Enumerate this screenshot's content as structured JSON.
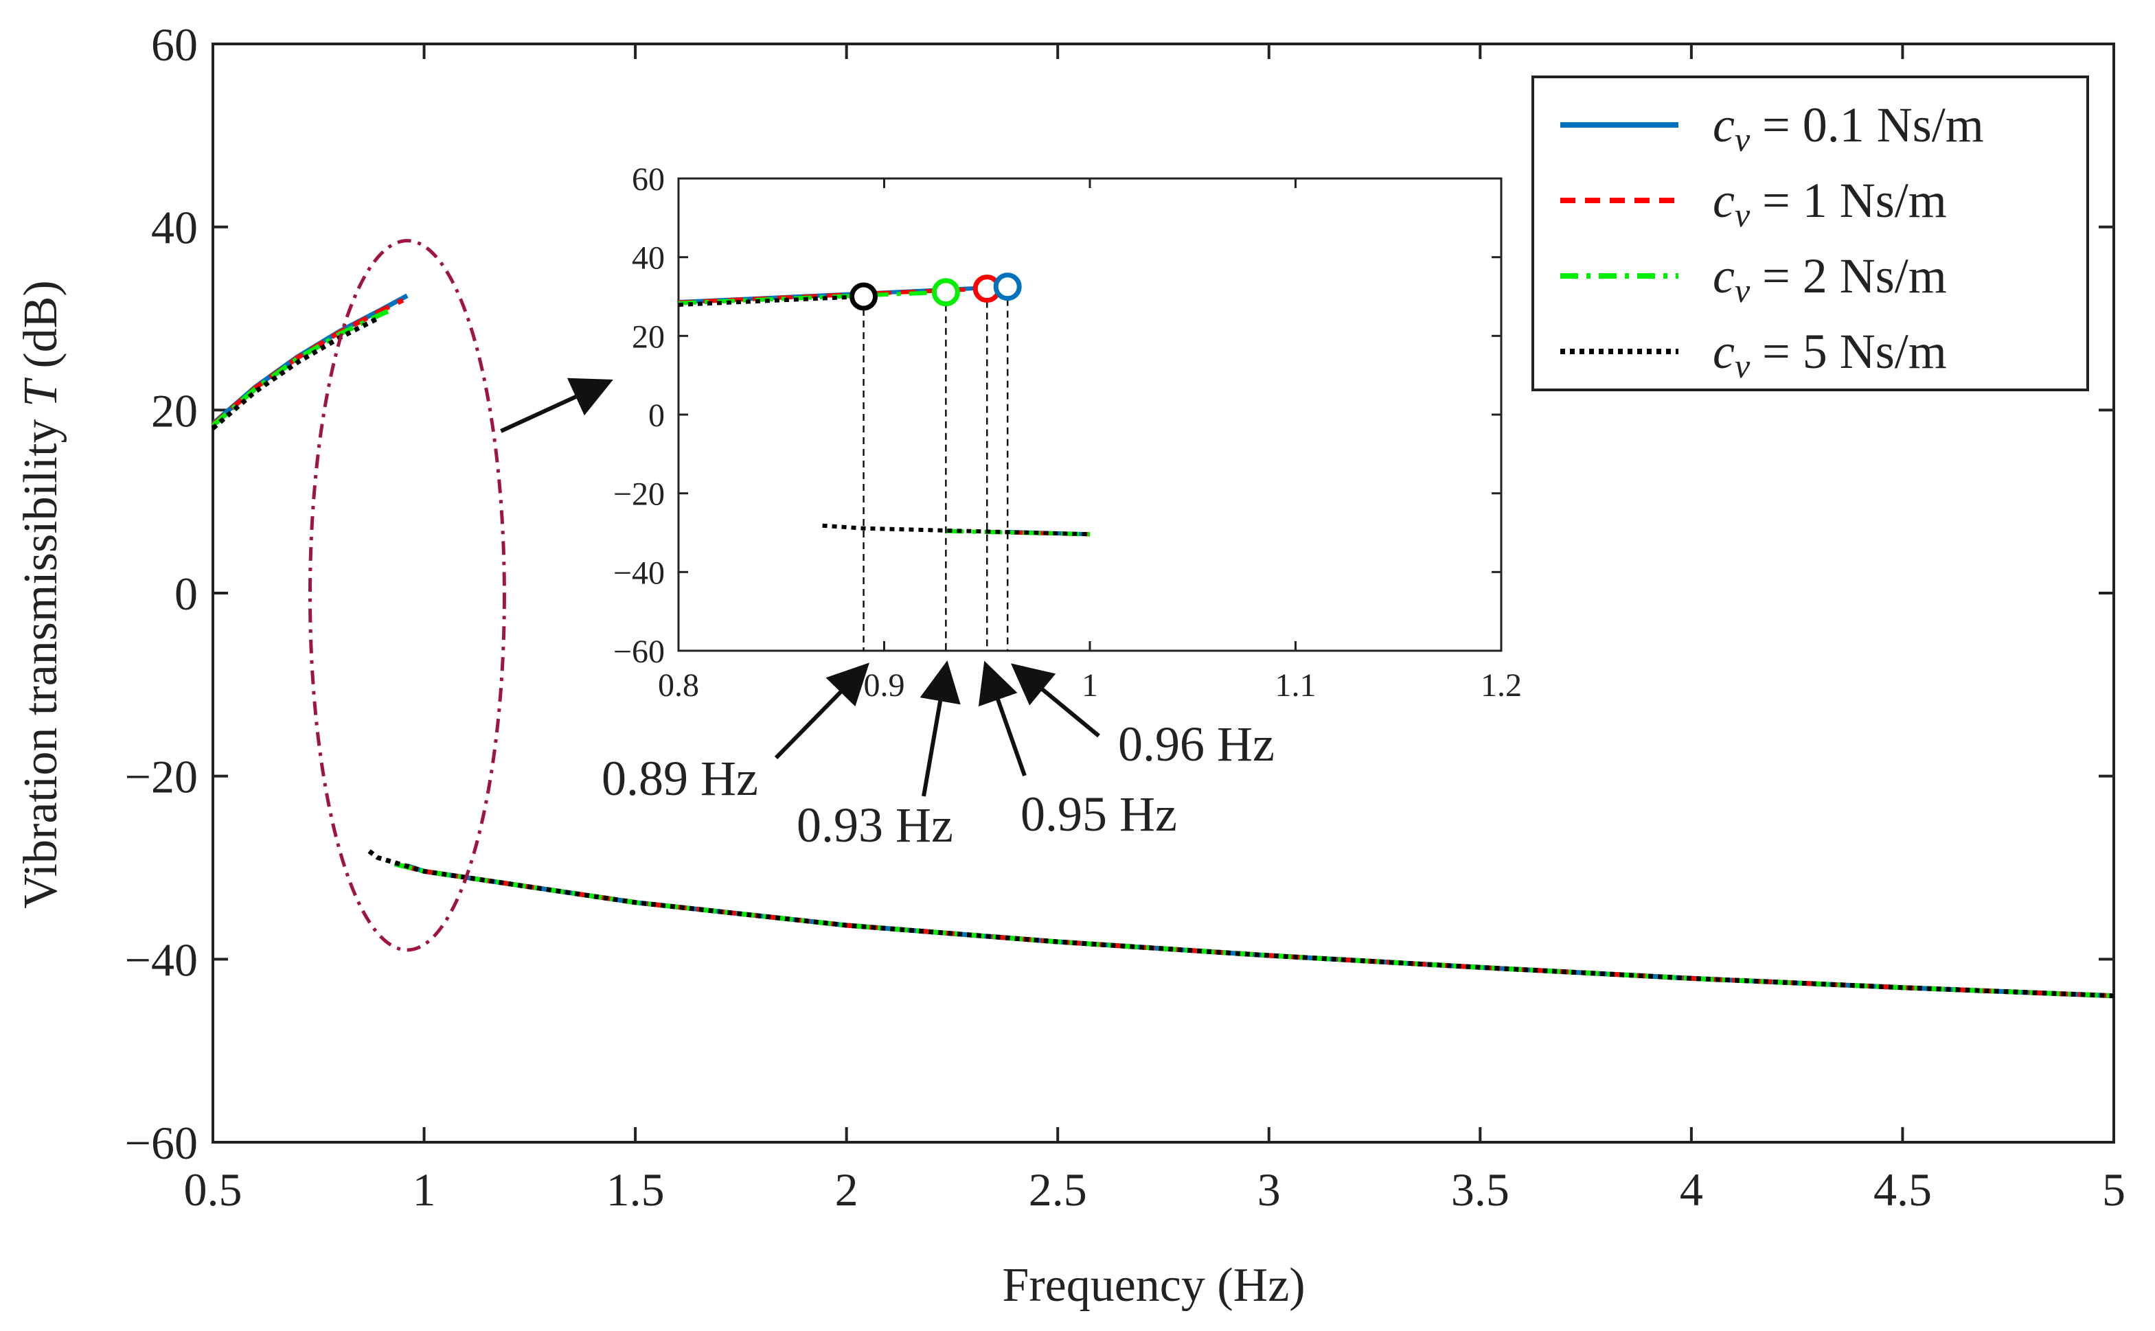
{
  "chart_data": {
    "type": "line",
    "title": "",
    "xlabel": "Frequency (Hz)",
    "ylabel_prefix": "Vibration transmissibility ",
    "ylabel_symbol": "T",
    "ylabel_suffix": " (dB)",
    "xlim": [
      0.5,
      5
    ],
    "ylim": [
      -60,
      60
    ],
    "x_ticks": [
      0.5,
      1,
      1.5,
      2,
      2.5,
      3,
      3.5,
      4,
      4.5,
      5
    ],
    "x_tick_labels": [
      "0.5",
      "1",
      "1.5",
      "2",
      "2.5",
      "3",
      "3.5",
      "4",
      "4.5",
      "5"
    ],
    "y_ticks": [
      -60,
      -40,
      -20,
      0,
      20,
      40,
      60
    ],
    "y_tick_labels": [
      "−60",
      "−40",
      "−20",
      "0",
      "20",
      "40",
      "60"
    ],
    "grid": false,
    "legend_position": "top-right",
    "series": [
      {
        "name": "c_v = 0.1 Ns/m",
        "legend_symbol": "c",
        "legend_subscript": "v",
        "legend_value": " = 0.1 Ns/m",
        "color": "#0072BD",
        "style": "solid",
        "upper_branch": {
          "x": [
            0.5,
            0.6,
            0.7,
            0.8,
            0.9,
            0.96
          ],
          "y": [
            18.5,
            22.5,
            25.8,
            28.6,
            31.0,
            32.5
          ]
        },
        "lower_branch": {
          "x": [
            0.96,
            1,
            1.5,
            2,
            2.5,
            3,
            3.5,
            4,
            4.5,
            5
          ],
          "y": [
            -29.8,
            -30.4,
            -33.8,
            -36.3,
            -38.1,
            -39.6,
            -40.9,
            -42.1,
            -43.1,
            -44.0
          ]
        }
      },
      {
        "name": "c_v = 1 Ns/m",
        "legend_symbol": "c",
        "legend_subscript": "v",
        "legend_value": " = 1 Ns/m",
        "color": "#FF0000",
        "style": "dashed",
        "upper_branch": {
          "x": [
            0.5,
            0.6,
            0.7,
            0.8,
            0.9,
            0.95
          ],
          "y": [
            18.4,
            22.4,
            25.7,
            28.5,
            30.9,
            32.0
          ]
        },
        "lower_branch": {
          "x": [
            0.95,
            1,
            1.5,
            2,
            2.5,
            3,
            3.5,
            4,
            4.5,
            5
          ],
          "y": [
            -29.8,
            -30.4,
            -33.8,
            -36.3,
            -38.1,
            -39.6,
            -40.9,
            -42.1,
            -43.1,
            -44.0
          ]
        }
      },
      {
        "name": "c_v = 2 Ns/m",
        "legend_symbol": "c",
        "legend_subscript": "v",
        "legend_value": " = 2 Ns/m",
        "color": "#00EE00",
        "style": "dashdot",
        "upper_branch": {
          "x": [
            0.5,
            0.6,
            0.7,
            0.8,
            0.9,
            0.93
          ],
          "y": [
            18.3,
            22.3,
            25.6,
            28.3,
            30.5,
            31.1
          ]
        },
        "lower_branch": {
          "x": [
            0.93,
            1,
            1.5,
            2,
            2.5,
            3,
            3.5,
            4,
            4.5,
            5
          ],
          "y": [
            -29.6,
            -30.4,
            -33.8,
            -36.3,
            -38.1,
            -39.6,
            -40.9,
            -42.1,
            -43.1,
            -44.0
          ]
        }
      },
      {
        "name": "c_v = 5 Ns/m",
        "legend_symbol": "c",
        "legend_subscript": "v",
        "legend_value": " = 5 Ns/m",
        "color": "#000000",
        "style": "dotted",
        "upper_branch": {
          "x": [
            0.5,
            0.6,
            0.7,
            0.8,
            0.89
          ],
          "y": [
            18.0,
            22.0,
            25.2,
            27.9,
            30.0
          ]
        },
        "lower_branch": {
          "x": [
            0.87,
            0.89,
            1,
            1.5,
            2,
            2.5,
            3,
            3.5,
            4,
            4.5,
            5
          ],
          "y": [
            -28.2,
            -28.9,
            -30.4,
            -33.8,
            -36.3,
            -38.1,
            -39.6,
            -40.9,
            -42.1,
            -43.1,
            -44.0
          ]
        }
      }
    ],
    "jump_points": [
      {
        "label": "0.89 Hz",
        "x": 0.89,
        "y": 30.0,
        "color": "#000000"
      },
      {
        "label": "0.93 Hz",
        "x": 0.93,
        "y": 31.1,
        "color": "#00EE00"
      },
      {
        "label": "0.95 Hz",
        "x": 0.95,
        "y": 32.0,
        "color": "#FF0000"
      },
      {
        "label": "0.96 Hz",
        "x": 0.96,
        "y": 32.5,
        "color": "#0072BD"
      }
    ],
    "inset": {
      "xlim": [
        0.8,
        1.2
      ],
      "ylim": [
        -60,
        60
      ],
      "x_ticks": [
        0.8,
        0.9,
        1,
        1.1,
        1.2
      ],
      "x_tick_labels": [
        "0.8",
        "0.9",
        "1",
        "1.1",
        "1.2"
      ],
      "y_ticks": [
        -60,
        -40,
        -20,
        0,
        20,
        40,
        60
      ],
      "y_tick_labels": [
        "−60",
        "−40",
        "−20",
        "0",
        "20",
        "40",
        "60"
      ],
      "zoom_region": {
        "x_center": 0.96,
        "x_half_width": 0.23,
        "y_min": -39,
        "y_max": 38.5
      }
    }
  }
}
